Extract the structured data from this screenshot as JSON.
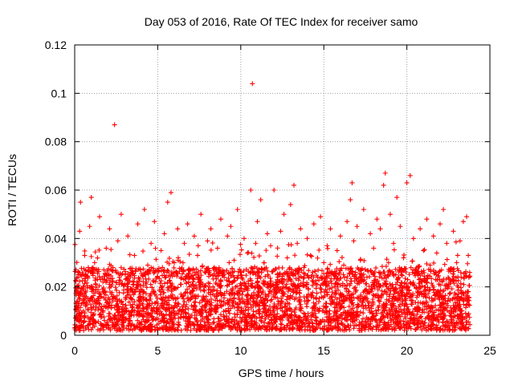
{
  "chart_data": {
    "type": "scatter",
    "title": "Day 053 of 2016, Rate Of TEC Index for receiver samo",
    "xlabel": "GPS time / hours",
    "ylabel": "ROTI / TECUs",
    "xlim": [
      0,
      25
    ],
    "ylim": [
      0,
      0.12
    ],
    "xticks": [
      0,
      5,
      10,
      15,
      20,
      25
    ],
    "xtick_labels": [
      "0",
      "5",
      "10",
      "15",
      "20",
      "25"
    ],
    "yticks": [
      0,
      0.02,
      0.04,
      0.06,
      0.08,
      0.1,
      0.12
    ],
    "ytick_labels": [
      "0",
      "0.02",
      "0.04",
      "0.06",
      "0.08",
      "0.1",
      "0.12"
    ],
    "grid": true,
    "marker": "plus",
    "color": "#ff0000",
    "series": [
      {
        "name": "ROTI",
        "points": [
          [
            0.1,
            0.012
          ],
          [
            0.2,
            0.025
          ],
          [
            0.3,
            0.043
          ],
          [
            0.35,
            0.055
          ],
          [
            0.5,
            0.02
          ],
          [
            0.6,
            0.033
          ],
          [
            0.8,
            0.015
          ],
          [
            0.9,
            0.045
          ],
          [
            1.0,
            0.057
          ],
          [
            1.2,
            0.03
          ],
          [
            1.4,
            0.018
          ],
          [
            1.5,
            0.049
          ],
          [
            1.7,
            0.022
          ],
          [
            1.9,
            0.036
          ],
          [
            2.1,
            0.044
          ],
          [
            2.3,
            0.028
          ],
          [
            2.4,
            0.087
          ],
          [
            2.6,
            0.039
          ],
          [
            2.8,
            0.05
          ],
          [
            3.0,
            0.021
          ],
          [
            3.2,
            0.041
          ],
          [
            3.4,
            0.026
          ],
          [
            3.6,
            0.033
          ],
          [
            3.8,
            0.046
          ],
          [
            4.0,
            0.019
          ],
          [
            4.2,
            0.052
          ],
          [
            4.4,
            0.029
          ],
          [
            4.6,
            0.038
          ],
          [
            4.8,
            0.047
          ],
          [
            5.0,
            0.024
          ],
          [
            5.2,
            0.035
          ],
          [
            5.4,
            0.042
          ],
          [
            5.6,
            0.055
          ],
          [
            5.8,
            0.059
          ],
          [
            6.0,
            0.03
          ],
          [
            6.2,
            0.044
          ],
          [
            6.4,
            0.021
          ],
          [
            6.6,
            0.038
          ],
          [
            6.8,
            0.046
          ],
          [
            7.0,
            0.027
          ],
          [
            7.2,
            0.041
          ],
          [
            7.4,
            0.033
          ],
          [
            7.6,
            0.05
          ],
          [
            7.8,
            0.02
          ],
          [
            8.0,
            0.039
          ],
          [
            8.2,
            0.044
          ],
          [
            8.4,
            0.028
          ],
          [
            8.6,
            0.036
          ],
          [
            8.8,
            0.048
          ],
          [
            9.0,
            0.024
          ],
          [
            9.2,
            0.041
          ],
          [
            9.4,
            0.045
          ],
          [
            9.6,
            0.031
          ],
          [
            9.8,
            0.052
          ],
          [
            10.0,
            0.026
          ],
          [
            10.2,
            0.04
          ],
          [
            10.4,
            0.034
          ],
          [
            10.6,
            0.06
          ],
          [
            10.7,
            0.104
          ],
          [
            10.9,
            0.038
          ],
          [
            11.0,
            0.047
          ],
          [
            11.2,
            0.056
          ],
          [
            11.4,
            0.03
          ],
          [
            11.6,
            0.042
          ],
          [
            11.8,
            0.037
          ],
          [
            12.0,
            0.06
          ],
          [
            12.2,
            0.025
          ],
          [
            12.4,
            0.043
          ],
          [
            12.6,
            0.05
          ],
          [
            12.8,
            0.032
          ],
          [
            13.0,
            0.054
          ],
          [
            13.2,
            0.062
          ],
          [
            13.4,
            0.038
          ],
          [
            13.6,
            0.044
          ],
          [
            13.8,
            0.028
          ],
          [
            14.0,
            0.04
          ],
          [
            14.2,
            0.033
          ],
          [
            14.4,
            0.046
          ],
          [
            14.6,
            0.021
          ],
          [
            14.8,
            0.049
          ],
          [
            15.0,
            0.03
          ],
          [
            15.2,
            0.037
          ],
          [
            15.4,
            0.044
          ],
          [
            15.6,
            0.025
          ],
          [
            15.8,
            0.035
          ],
          [
            16.0,
            0.041
          ],
          [
            16.2,
            0.029
          ],
          [
            16.4,
            0.047
          ],
          [
            16.6,
            0.056
          ],
          [
            16.7,
            0.063
          ],
          [
            16.8,
            0.039
          ],
          [
            17.0,
            0.045
          ],
          [
            17.2,
            0.031
          ],
          [
            17.4,
            0.052
          ],
          [
            17.6,
            0.024
          ],
          [
            17.8,
            0.042
          ],
          [
            18.0,
            0.036
          ],
          [
            18.2,
            0.048
          ],
          [
            18.4,
            0.044
          ],
          [
            18.6,
            0.062
          ],
          [
            18.7,
            0.067
          ],
          [
            18.9,
            0.03
          ],
          [
            19.0,
            0.05
          ],
          [
            19.2,
            0.038
          ],
          [
            19.4,
            0.057
          ],
          [
            19.6,
            0.045
          ],
          [
            19.8,
            0.032
          ],
          [
            20.0,
            0.063
          ],
          [
            20.2,
            0.066
          ],
          [
            20.4,
            0.04
          ],
          [
            20.6,
            0.026
          ],
          [
            20.8,
            0.044
          ],
          [
            21.0,
            0.035
          ],
          [
            21.2,
            0.048
          ],
          [
            21.4,
            0.029
          ],
          [
            21.6,
            0.041
          ],
          [
            21.8,
            0.034
          ],
          [
            22.0,
            0.046
          ],
          [
            22.2,
            0.052
          ],
          [
            22.4,
            0.038
          ],
          [
            22.6,
            0.022
          ],
          [
            22.8,
            0.043
          ],
          [
            23.0,
            0.03
          ],
          [
            23.2,
            0.039
          ],
          [
            23.4,
            0.047
          ],
          [
            23.6,
            0.049
          ],
          [
            23.7,
            0.033
          ]
        ],
        "dense_band": {
          "x_range": [
            0,
            23.8
          ],
          "y_typical_range": [
            0.002,
            0.028
          ],
          "description": "continuous dense cluster of observations"
        }
      }
    ]
  }
}
